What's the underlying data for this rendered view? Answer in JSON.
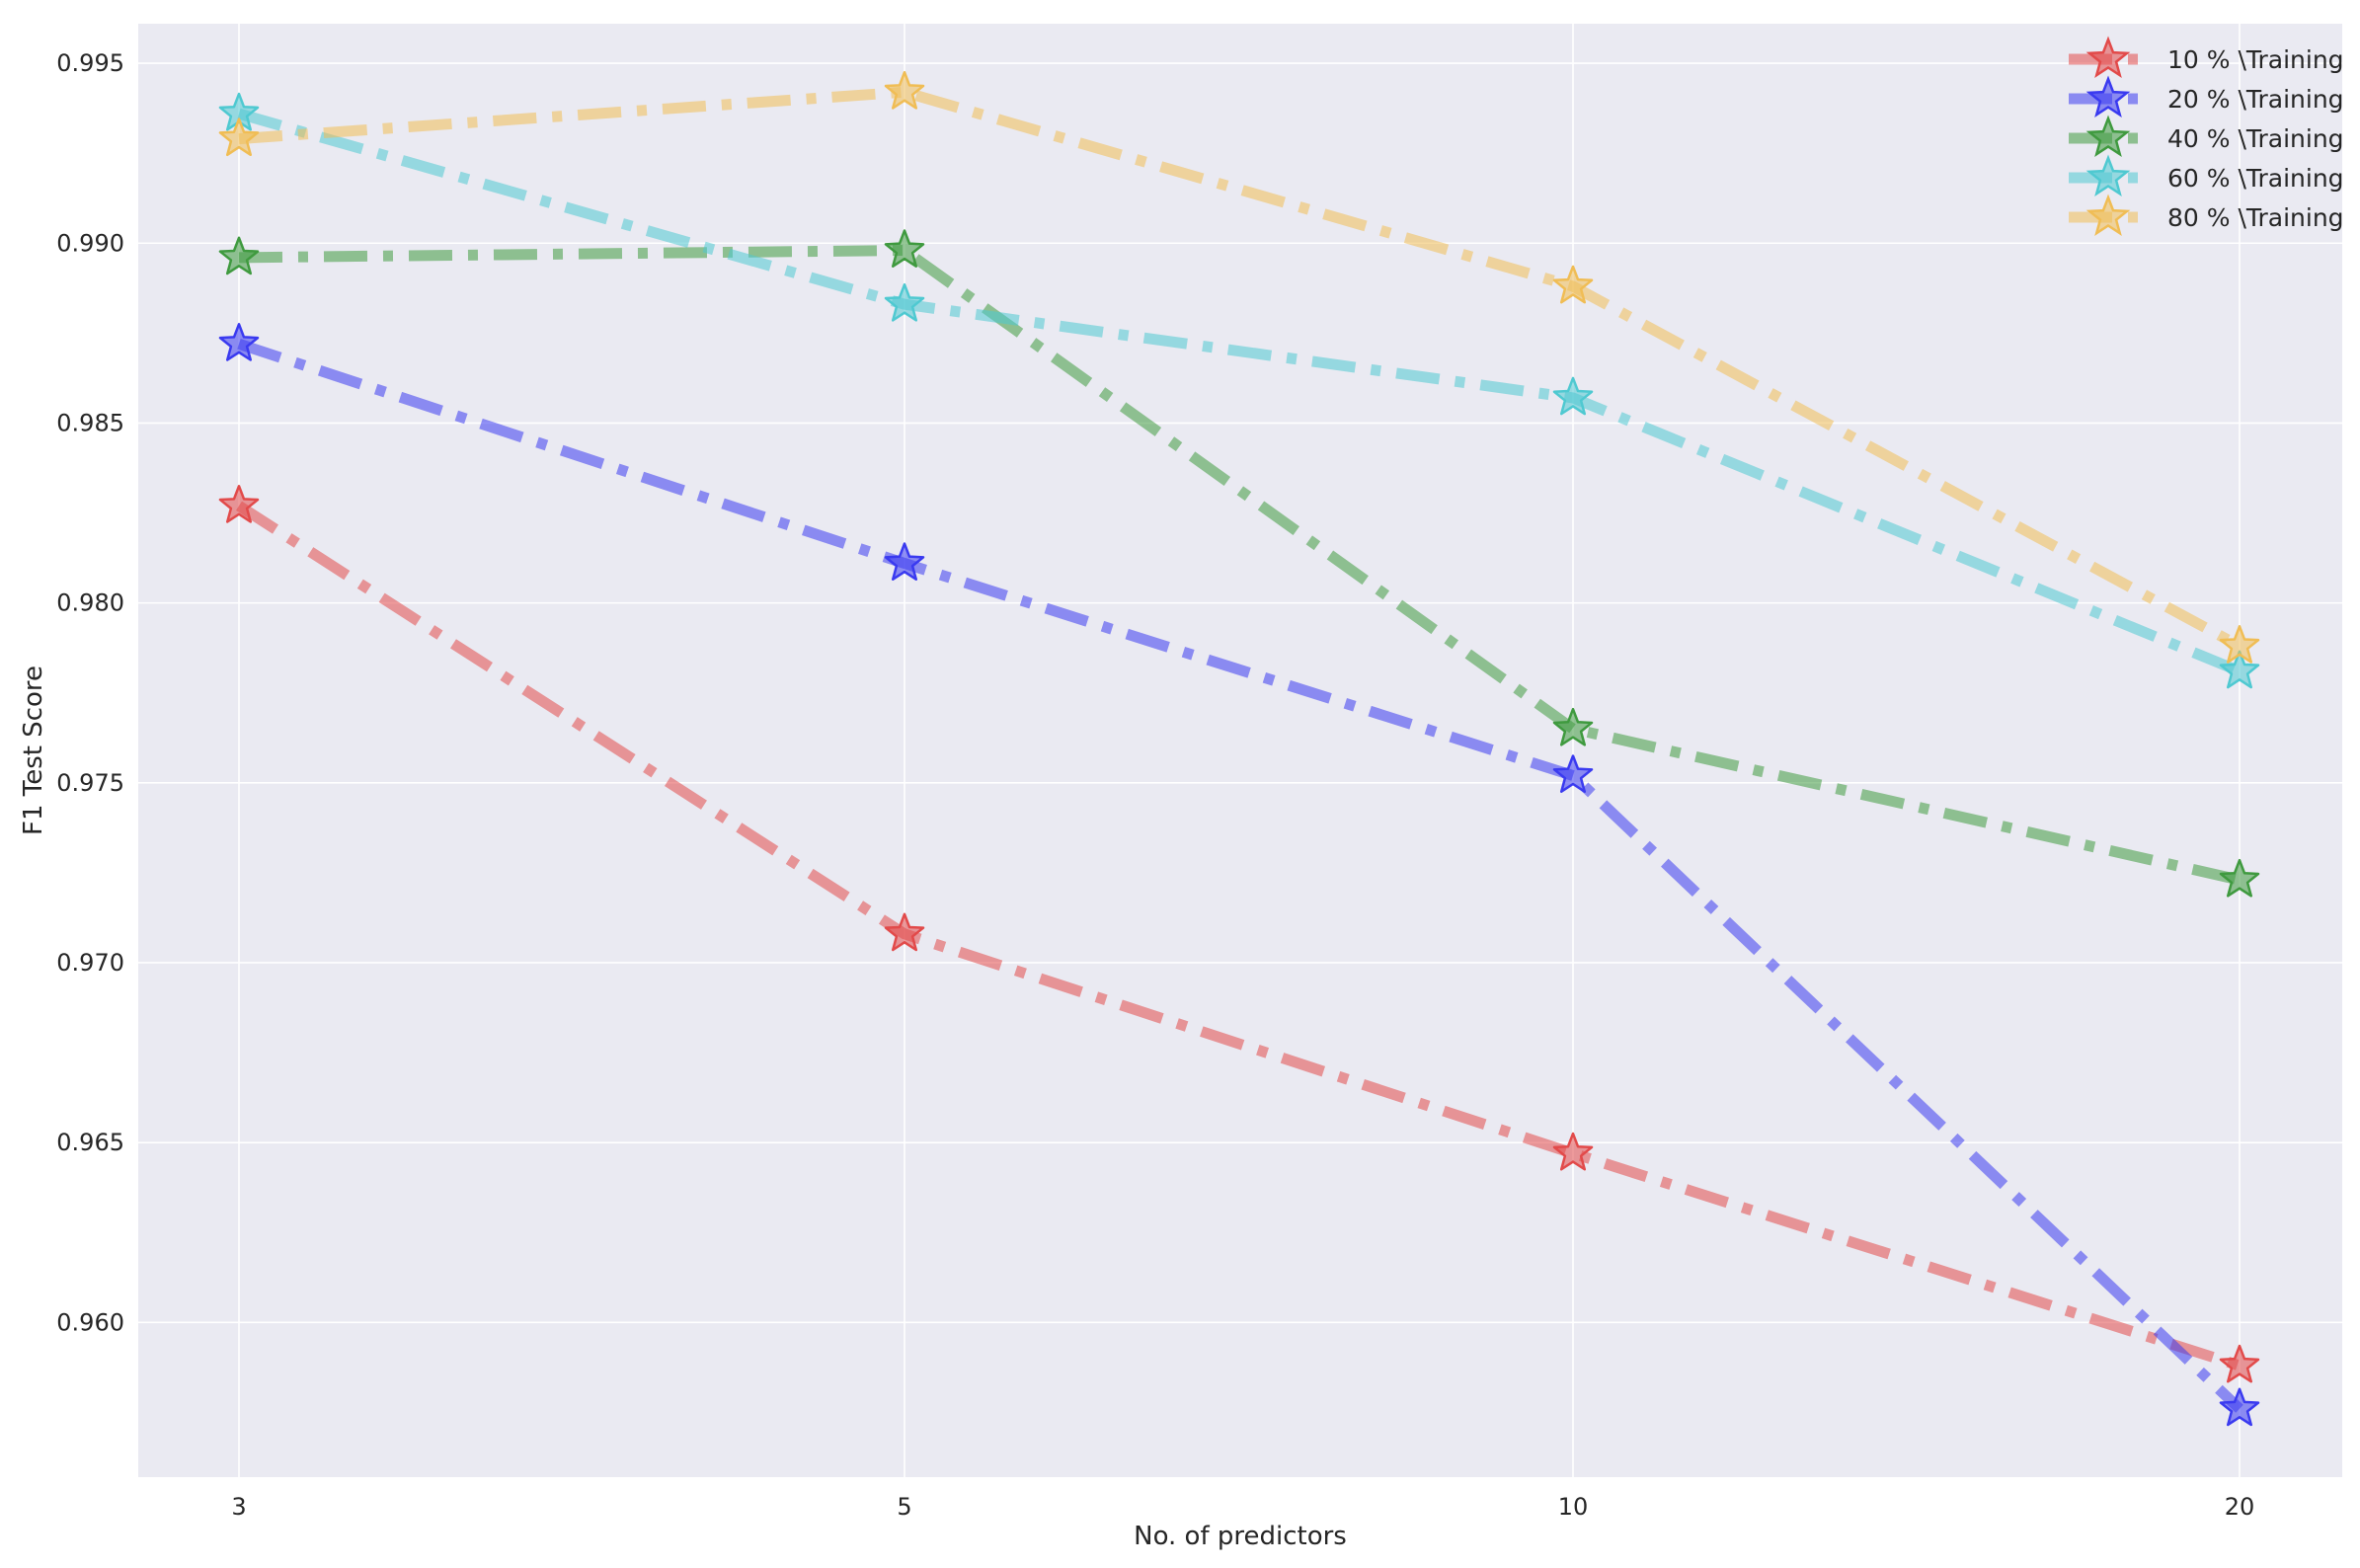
{
  "chart_data": {
    "type": "line",
    "title": "",
    "xlabel": "No. of predictors",
    "ylabel": "F1 Test Score",
    "categories": [
      "3",
      "5",
      "10",
      "20"
    ],
    "ylim": [
      0.9557,
      0.9961
    ],
    "yticks": [
      "0.960",
      "0.965",
      "0.970",
      "0.975",
      "0.980",
      "0.985",
      "0.990",
      "0.995"
    ],
    "grid": true,
    "legend_position": "top-right",
    "line_style": "dash-dot",
    "marker": "star",
    "series": [
      {
        "name": "10 % \\Training",
        "color": "#e24a4a",
        "values": [
          0.9827,
          0.9708,
          0.9647,
          0.9588
        ]
      },
      {
        "name": "20 % \\Training",
        "color": "#3a3af0",
        "values": [
          0.9872,
          0.9811,
          0.9752,
          0.9576
        ]
      },
      {
        "name": "40 % \\Training",
        "color": "#3f9a3f",
        "values": [
          0.9896,
          0.9898,
          0.9765,
          0.9723
        ]
      },
      {
        "name": "60 % \\Training",
        "color": "#4fc9d1",
        "values": [
          0.9936,
          0.9883,
          0.9857,
          0.9781
        ]
      },
      {
        "name": "80 % \\Training",
        "color": "#f0bd55",
        "values": [
          0.9929,
          0.9942,
          0.9888,
          0.9788
        ]
      }
    ]
  }
}
